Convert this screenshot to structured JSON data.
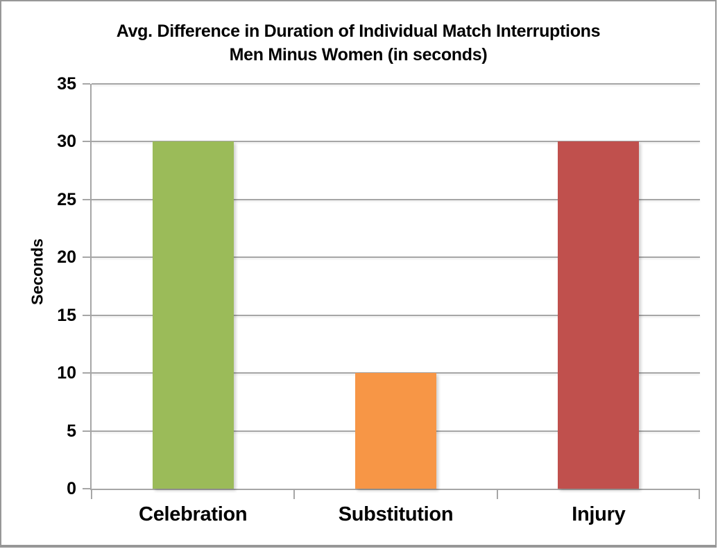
{
  "frame": {
    "background": "#FFFFFF",
    "border_color": "#979797"
  },
  "chart_data": {
    "type": "bar",
    "title_line1": "Avg. Difference in Duration of Individual Match Interruptions",
    "title_line2": "Men Minus Women (in seconds)",
    "categories": [
      "Celebration",
      "Substitution",
      "Injury"
    ],
    "values": [
      30,
      10,
      30
    ],
    "bar_colors": [
      "#9BBB59",
      "#F79646",
      "#C0504D"
    ],
    "xlabel": "",
    "ylabel": "Seconds",
    "ylim": [
      0,
      35
    ],
    "yticks": [
      0,
      5,
      10,
      15,
      20,
      25,
      30,
      35
    ],
    "grid": true,
    "gridline_color": "#A6A6A6",
    "axis_color": "#A6A6A6",
    "text_color": "#000000",
    "legend": "none"
  }
}
